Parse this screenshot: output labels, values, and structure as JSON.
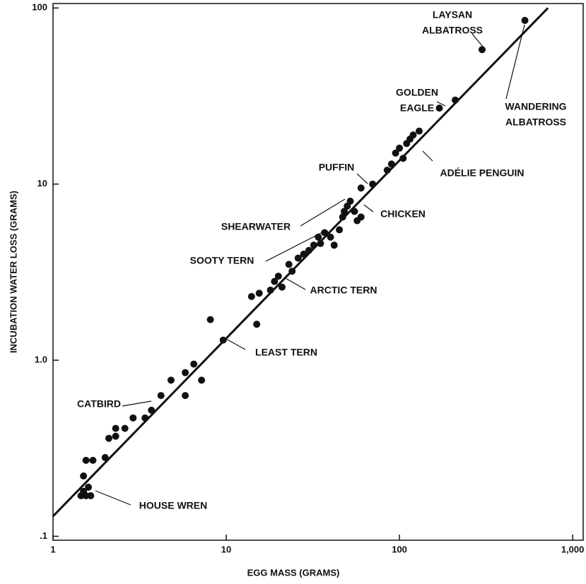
{
  "chart_data": {
    "type": "scatter",
    "x_label": "EGG MASS (GRAMS)",
    "y_label": "INCUBATION WATER LOSS (GRAMS)",
    "log_x": true,
    "log_y": true,
    "xlim": [
      1,
      1150
    ],
    "ylim": [
      0.095,
      106
    ],
    "xticks": [
      1,
      10,
      100,
      {
        "value": 1000,
        "label": "1,000"
      }
    ],
    "yticks": [
      {
        "value": 0.1,
        "label": ".1"
      },
      {
        "value": 1,
        "label": "1.0"
      },
      10,
      100
    ],
    "color": "#111111",
    "x": [
      1.45,
      1.5,
      1.55,
      1.6,
      1.65,
      1.5,
      1.55,
      1.7,
      2.0,
      2.1,
      2.3,
      2.3,
      2.6,
      2.9,
      3.4,
      3.7,
      4.2,
      4.8,
      5.8,
      5.8,
      6.5,
      7.2,
      8.1,
      9.6,
      14,
      15,
      15.5,
      18,
      19,
      20,
      21,
      23,
      24,
      26,
      28,
      30,
      32,
      34,
      35,
      37,
      40,
      42,
      45,
      47,
      48,
      50,
      52,
      55,
      57,
      60,
      60,
      70,
      85,
      90,
      95,
      100,
      105,
      110,
      115,
      120,
      130,
      170,
      210,
      300,
      530
    ],
    "y": [
      0.17,
      0.18,
      0.17,
      0.19,
      0.17,
      0.22,
      0.27,
      0.27,
      0.28,
      0.36,
      0.37,
      0.41,
      0.41,
      0.47,
      0.47,
      0.52,
      0.63,
      0.77,
      0.85,
      0.63,
      0.95,
      0.77,
      1.7,
      1.3,
      2.3,
      1.6,
      2.4,
      2.5,
      2.8,
      3.0,
      2.6,
      3.5,
      3.2,
      3.8,
      4.0,
      4.2,
      4.5,
      5.0,
      4.6,
      5.3,
      5.0,
      4.5,
      5.5,
      6.5,
      7.0,
      7.5,
      8.0,
      7.0,
      6.2,
      6.5,
      9.5,
      10,
      12,
      13,
      15,
      16,
      14,
      17,
      18,
      19,
      20,
      27,
      30,
      58,
      85
    ],
    "fit_line": {
      "x": [
        1,
        720
      ],
      "y": [
        0.13,
        100
      ]
    },
    "annotations": [
      {
        "lines": [
          "LAYSAN",
          "ALBATROSS"
        ]
      },
      {
        "lines": [
          "GOLDEN",
          "EAGLE"
        ]
      },
      {
        "lines": [
          "WANDERING",
          "ALBATROSS"
        ]
      },
      {
        "lines": [
          "ADÉLIE PENGUIN"
        ]
      },
      {
        "lines": [
          "PUFFIN"
        ]
      },
      {
        "lines": [
          "CHICKEN"
        ]
      },
      {
        "lines": [
          "SHEARWATER"
        ]
      },
      {
        "lines": [
          "SOOTY TERN"
        ]
      },
      {
        "lines": [
          "ARCTIC TERN"
        ]
      },
      {
        "lines": [
          "LEAST TERN"
        ]
      },
      {
        "lines": [
          "CATBIRD"
        ]
      },
      {
        "lines": [
          "HOUSE WREN"
        ]
      }
    ]
  }
}
